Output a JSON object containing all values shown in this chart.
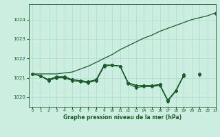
{
  "background_color": "#cceee0",
  "grid_color": "#aaddcc",
  "line_color": "#1a5c2a",
  "title": "Graphe pression niveau de la mer (hPa)",
  "xlim": [
    -0.5,
    23
  ],
  "ylim": [
    1019.5,
    1024.8
  ],
  "yticks": [
    1020,
    1021,
    1022,
    1023,
    1024
  ],
  "xticks": [
    0,
    1,
    2,
    3,
    4,
    5,
    6,
    7,
    8,
    9,
    10,
    11,
    12,
    13,
    14,
    15,
    16,
    17,
    18,
    19,
    20,
    21,
    22,
    23
  ],
  "series": {
    "line_smooth": [
      1021.2,
      1021.2,
      1021.2,
      1021.2,
      1021.25,
      1021.3,
      1021.45,
      1021.6,
      1021.8,
      1022.0,
      1022.2,
      1022.45,
      1022.65,
      1022.85,
      1023.05,
      1023.2,
      1023.4,
      1023.55,
      1023.7,
      1023.85,
      1024.0,
      1024.1,
      1024.2,
      1024.35
    ],
    "line_markers1": [
      1021.2,
      1021.1,
      1020.9,
      1021.05,
      1021.05,
      1020.9,
      1020.85,
      1020.8,
      1020.9,
      1021.65,
      1021.65,
      1021.6,
      1020.75,
      1020.6,
      1020.6,
      1020.6,
      1020.65,
      null,
      null,
      1021.15,
      null,
      1021.2,
      null,
      null
    ],
    "line_markers2": [
      1021.2,
      1021.1,
      1020.9,
      1021.05,
      1021.05,
      1020.9,
      1020.85,
      1020.8,
      1020.9,
      1021.65,
      1021.65,
      1021.6,
      1020.75,
      1020.6,
      1020.6,
      1020.6,
      1020.65,
      1019.85,
      1020.35,
      1021.15,
      null,
      1021.2,
      null,
      1024.35
    ],
    "line_markers3": [
      1021.2,
      1021.1,
      1020.85,
      1021.0,
      1021.0,
      1020.85,
      1020.8,
      1020.75,
      1020.85,
      1021.6,
      1021.65,
      1021.6,
      1020.7,
      1020.5,
      1020.55,
      1020.55,
      1020.6,
      1019.8,
      1020.3,
      1021.1,
      null,
      1021.15,
      null,
      1024.3
    ]
  }
}
